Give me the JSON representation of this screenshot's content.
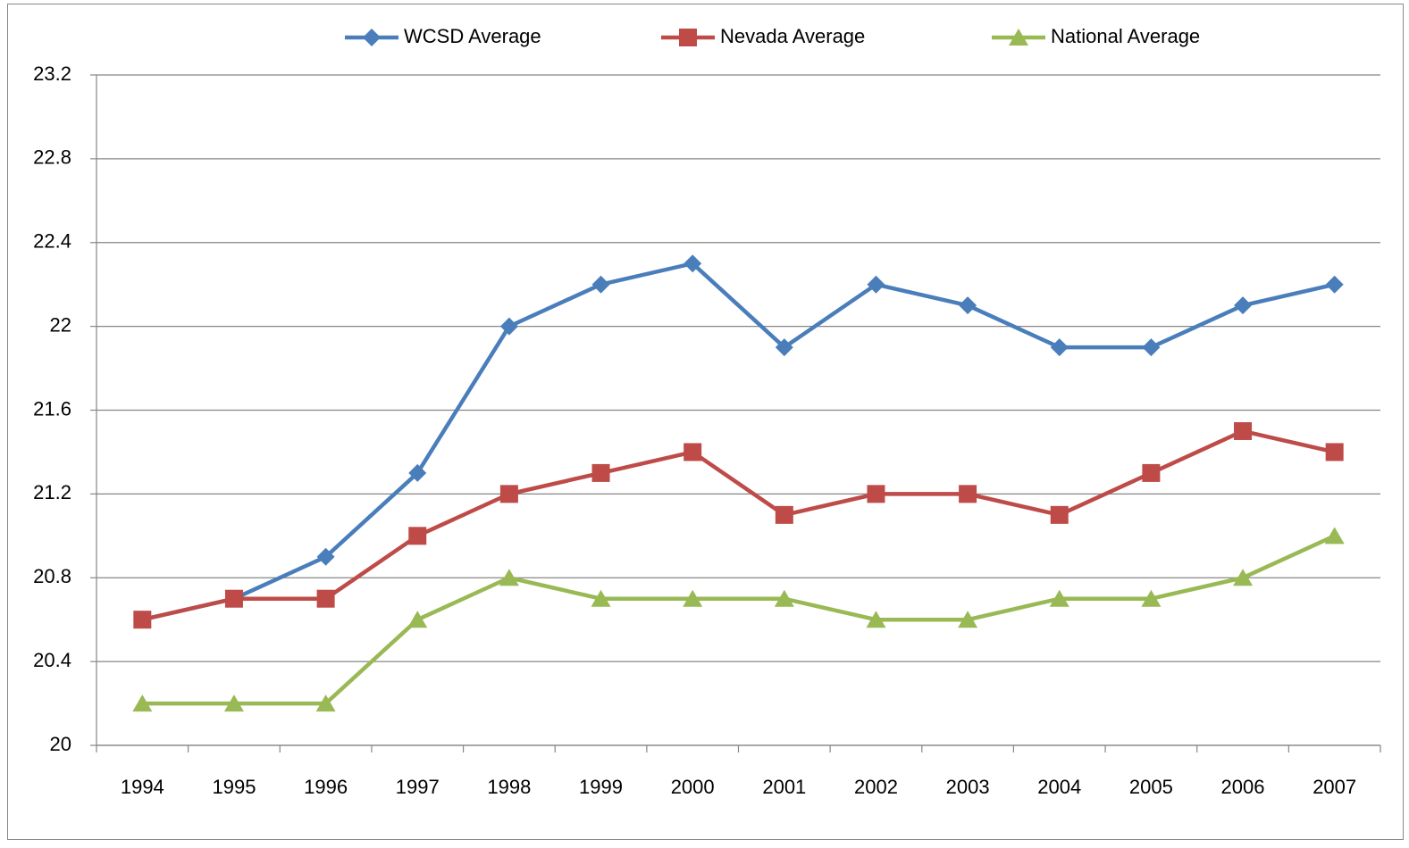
{
  "chart_data": {
    "type": "line",
    "categories": [
      "1994",
      "1995",
      "1996",
      "1997",
      "1998",
      "1999",
      "2000",
      "2001",
      "2002",
      "2003",
      "2004",
      "2005",
      "2006",
      "2007"
    ],
    "series": [
      {
        "name": "WCSD Average",
        "color": "#4a7ebb",
        "marker": "diamond",
        "values": [
          20.6,
          20.7,
          20.9,
          21.3,
          22.0,
          22.2,
          22.3,
          21.9,
          22.2,
          22.1,
          21.9,
          21.9,
          22.1,
          22.2
        ]
      },
      {
        "name": "Nevada Average",
        "color": "#be4b48",
        "marker": "square",
        "values": [
          20.6,
          20.7,
          20.7,
          21.0,
          21.2,
          21.3,
          21.4,
          21.1,
          21.2,
          21.2,
          21.1,
          21.3,
          21.5,
          21.4
        ]
      },
      {
        "name": "National Average",
        "color": "#98b954",
        "marker": "triangle",
        "values": [
          20.2,
          20.2,
          20.2,
          20.6,
          20.8,
          20.7,
          20.7,
          20.7,
          20.6,
          20.6,
          20.7,
          20.7,
          20.8,
          21.0
        ]
      }
    ],
    "ylim": [
      20,
      23.2
    ],
    "yticks": [
      20,
      20.4,
      20.8,
      21.2,
      21.6,
      22,
      22.4,
      22.8,
      23.2
    ],
    "grid": true,
    "legend": "top"
  }
}
